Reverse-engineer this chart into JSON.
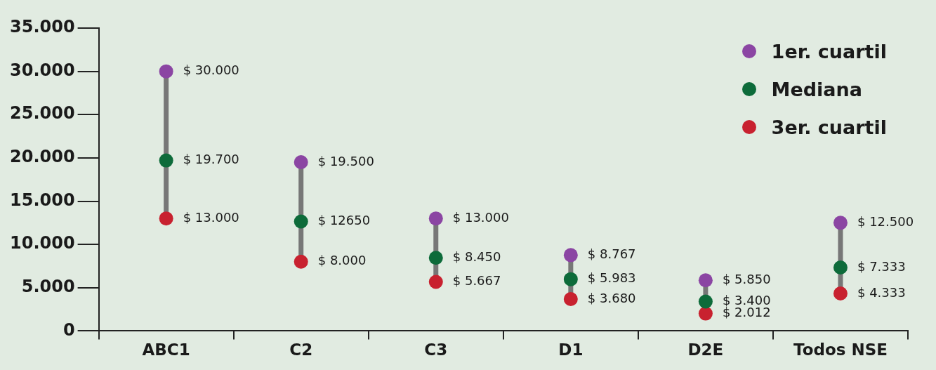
{
  "chart_data": {
    "type": "scatter",
    "categories": [
      "ABC1",
      "C2",
      "C3",
      "D1",
      "D2E",
      "Todos NSE"
    ],
    "ylim": [
      0,
      35000
    ],
    "yticks": [
      0,
      {
        "value": 5000,
        "label": "5.000"
      },
      {
        "value": 10000,
        "label": "10.000"
      },
      {
        "value": 15000,
        "label": "15.000"
      },
      {
        "value": 20000,
        "label": "20.000"
      },
      {
        "value": 25000,
        "label": "25.000"
      },
      {
        "value": 30000,
        "label": "30.000"
      },
      {
        "value": 35000,
        "label": "35.000"
      }
    ],
    "grid": false,
    "legend": "top right",
    "marker": "circle",
    "series": [
      {
        "name": "1er. cuartil",
        "color": "#8b45a3",
        "values": [
          30000,
          19500,
          13000,
          8767,
          5850,
          12500
        ],
        "value_labels": [
          "$ 30.000",
          "$ 19.500",
          "$ 13.000",
          "$ 8.767",
          "$ 5.850",
          "$ 12.500"
        ]
      },
      {
        "name": "Mediana",
        "color": "#0d6b3a",
        "values": [
          19700,
          12650,
          8450,
          5983,
          3400,
          7333
        ],
        "value_labels": [
          "$ 19.700",
          "$ 12650",
          "$ 8.450",
          "$ 5.983",
          "$ 3.400",
          "$ 7.333"
        ]
      },
      {
        "name": "3er. cuartil",
        "color": "#c8212f",
        "values": [
          13000,
          8000,
          5667,
          3680,
          2012,
          4333
        ],
        "value_labels": [
          "$ 13.000",
          "$ 8.000",
          "$ 5.667",
          "$ 3.680",
          "$ 2.012",
          "$ 4.333"
        ]
      }
    ]
  }
}
